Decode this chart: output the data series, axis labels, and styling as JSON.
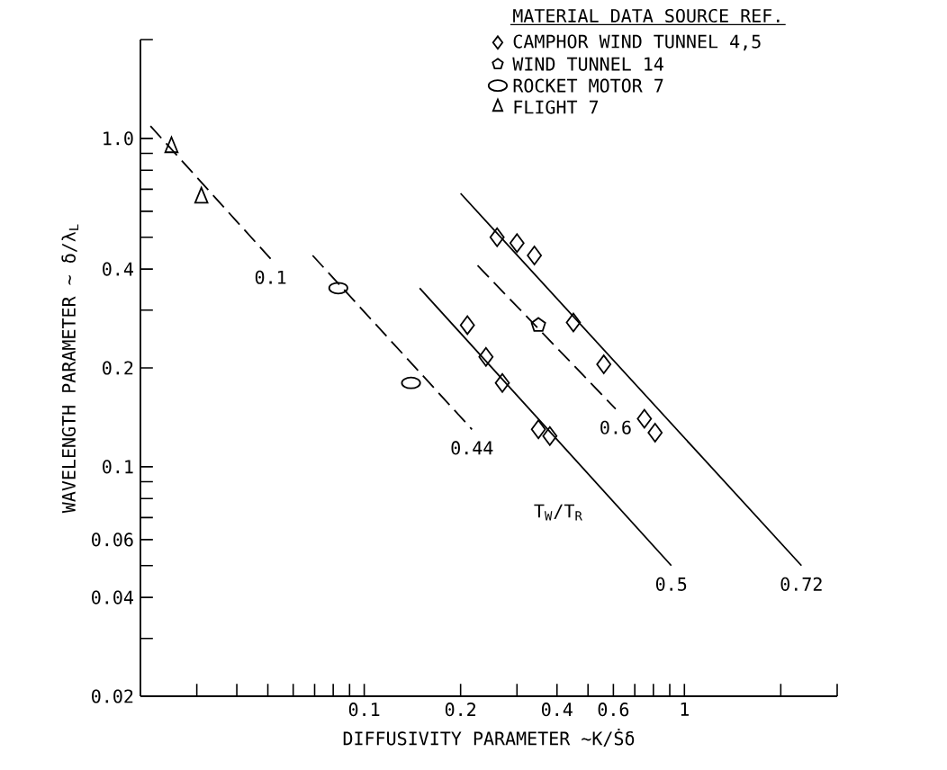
{
  "chart_data": {
    "type": "scatter",
    "log": "xy",
    "xlabel": "DIFFUSIVITY PARAMETER ~K/Ṡδ",
    "ylabel": "WAVELENGTH PARAMETER ~ δ/λ$_{L}$",
    "legend": "top right",
    "legend_title": "MATERIAL DATA SOURCE REF.",
    "xlim": [
      0.02,
      3
    ],
    "ylim": [
      0.02,
      2
    ],
    "xticks": [
      {
        "value": 0.03,
        "label": null
      },
      {
        "value": 0.04,
        "label": null
      },
      {
        "value": 0.05,
        "label": null
      },
      {
        "value": 0.06,
        "label": null
      },
      {
        "value": 0.07,
        "label": null
      },
      {
        "value": 0.08,
        "label": null
      },
      {
        "value": 0.09,
        "label": null
      },
      0.1,
      0.2,
      {
        "value": 0.3,
        "label": null
      },
      0.4,
      {
        "value": 0.5,
        "label": null
      },
      0.6,
      {
        "value": 0.7,
        "label": null
      },
      {
        "value": 0.8,
        "label": null
      },
      {
        "value": 0.9,
        "label": null
      },
      1,
      {
        "value": 2,
        "label": null
      },
      {
        "value": 3,
        "label": null
      }
    ],
    "yticks": [
      0.02,
      {
        "value": 0.03,
        "label": null
      },
      0.04,
      {
        "value": 0.05,
        "label": null
      },
      0.06,
      {
        "value": 0.07,
        "label": null
      },
      {
        "value": 0.08,
        "label": null
      },
      {
        "value": 0.09,
        "label": null
      },
      0.1,
      0.2,
      {
        "value": 0.3,
        "label": null
      },
      0.4,
      {
        "value": 0.5,
        "label": null
      },
      {
        "value": 0.6,
        "label": null
      },
      {
        "value": 0.7,
        "label": null
      },
      {
        "value": 0.8,
        "label": null
      },
      {
        "value": 0.9,
        "label": null
      },
      {
        "value": 1,
        "label": "1.0"
      },
      {
        "value": 2,
        "label": null
      }
    ],
    "series": [
      {
        "name": "CAMPHOR WIND TUNNEL 4,5",
        "color": "#000000",
        "marker": "diamond",
        "x": [
          0.26,
          0.3,
          0.34,
          0.45,
          0.56,
          0.75,
          0.81,
          0.21,
          0.24,
          0.27,
          0.35,
          0.38
        ],
        "values": [
          0.5,
          0.48,
          0.44,
          0.275,
          0.205,
          0.14,
          0.127,
          0.27,
          0.216,
          0.18,
          0.13,
          0.124
        ]
      },
      {
        "name": "WIND TUNNEL 14",
        "color": "#000000",
        "marker": "square",
        "x": [
          0.35
        ],
        "values": [
          0.27
        ]
      },
      {
        "name": "ROCKET MOTOR 7",
        "color": "#000000",
        "marker": "circle",
        "x": [
          0.083,
          0.14
        ],
        "values": [
          0.35,
          0.18
        ]
      },
      {
        "name": "FLIGHT 7",
        "color": "#000000",
        "marker": "triangle",
        "x": [
          0.025,
          0.031
        ],
        "values": [
          0.94,
          0.66
        ]
      },
      {
        "type": "line",
        "color": "#000000",
        "line_style": "dashed",
        "x": [
          0.0215,
          0.051
        ],
        "values": [
          1.09,
          0.43
        ]
      },
      {
        "type": "line",
        "color": "#000000",
        "line_style": "dashed",
        "x": [
          0.069,
          0.217
        ],
        "values": [
          0.44,
          0.13
        ]
      },
      {
        "type": "line",
        "color": "#000000",
        "line_style": "solid",
        "x": [
          0.149,
          0.91
        ],
        "values": [
          0.35,
          0.05
        ]
      },
      {
        "type": "line",
        "color": "#000000",
        "line_style": "dashed",
        "x": [
          0.226,
          0.61
        ],
        "values": [
          0.41,
          0.15
        ]
      },
      {
        "type": "line",
        "color": "#000000",
        "line_style": "solid",
        "x": [
          0.2,
          2.32
        ],
        "values": [
          0.68,
          0.05
        ]
      }
    ],
    "annotations": [
      {
        "text": "0.1",
        "x": 0.051,
        "y": 0.43
      },
      {
        "text": "0.44",
        "x": 0.217,
        "y": 0.13
      },
      {
        "text": "0.6",
        "x": 0.61,
        "y": 0.15
      },
      {
        "text": "0.5",
        "x": 0.91,
        "y": 0.05
      },
      {
        "text": "0.72",
        "x": 2.32,
        "y": 0.05
      },
      "T$_{W}$/T$_{R}$"
    ]
  }
}
